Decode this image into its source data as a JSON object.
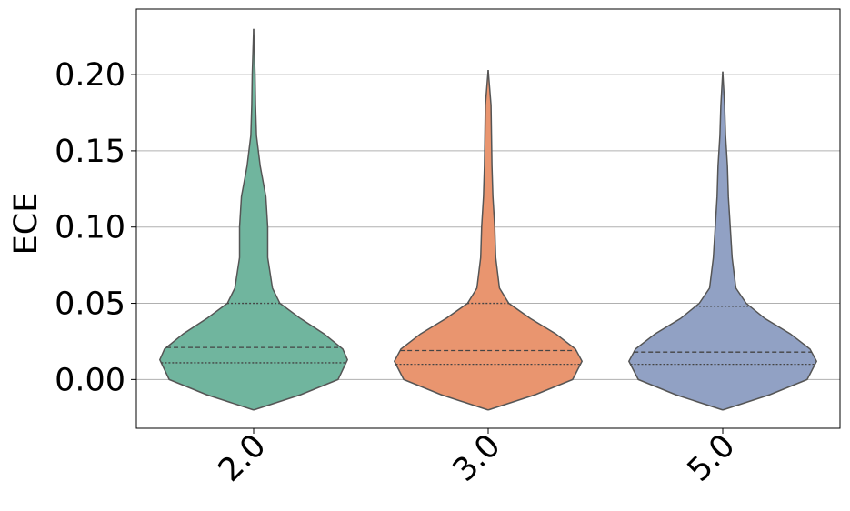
{
  "chart_data": {
    "type": "violin",
    "y_label": "ECE",
    "categories": [
      "2.0",
      "3.0",
      "5.0"
    ],
    "ylim": [
      -0.032,
      0.243
    ],
    "yticks": [
      {
        "value": 0,
        "label": "0.00"
      },
      {
        "value": 0.05,
        "label": "0.05"
      },
      {
        "value": 0.1,
        "label": "0.10"
      },
      {
        "value": 0.15,
        "label": "0.15"
      },
      {
        "value": 0.2,
        "label": "0.20"
      }
    ],
    "grid": true,
    "violins": [
      {
        "color": "#70b59e",
        "q1": 0.011,
        "median": 0.021,
        "q3": 0.05,
        "density": {
          "y": [
            -0.02,
            -0.01,
            0,
            0.013,
            0.02,
            0.03,
            0.04,
            0.05,
            0.06,
            0.08,
            0.1,
            0.12,
            0.14,
            0.16,
            0.18,
            0.2,
            0.23
          ],
          "width": [
            0,
            0.5,
            0.9,
            1.0,
            0.95,
            0.75,
            0.5,
            0.28,
            0.2,
            0.15,
            0.15,
            0.13,
            0.07,
            0.03,
            0.02,
            0.015,
            0
          ]
        }
      },
      {
        "color": "#e9956f",
        "q1": 0.01,
        "median": 0.019,
        "q3": 0.05,
        "density": {
          "y": [
            -0.02,
            -0.01,
            0,
            0.012,
            0.02,
            0.03,
            0.04,
            0.05,
            0.06,
            0.08,
            0.1,
            0.12,
            0.14,
            0.16,
            0.18,
            0.203
          ],
          "width": [
            0,
            0.5,
            0.9,
            1.0,
            0.93,
            0.72,
            0.45,
            0.22,
            0.12,
            0.08,
            0.07,
            0.05,
            0.04,
            0.035,
            0.03,
            0
          ]
        }
      },
      {
        "color": "#91a1c4",
        "q1": 0.01,
        "median": 0.018,
        "q3": 0.048,
        "density": {
          "y": [
            -0.02,
            -0.01,
            0,
            0.012,
            0.02,
            0.03,
            0.04,
            0.05,
            0.06,
            0.08,
            0.1,
            0.12,
            0.14,
            0.16,
            0.18,
            0.202
          ],
          "width": [
            0,
            0.5,
            0.9,
            1.0,
            0.93,
            0.72,
            0.45,
            0.25,
            0.14,
            0.1,
            0.08,
            0.06,
            0.05,
            0.03,
            0.02,
            0
          ]
        }
      }
    ]
  }
}
